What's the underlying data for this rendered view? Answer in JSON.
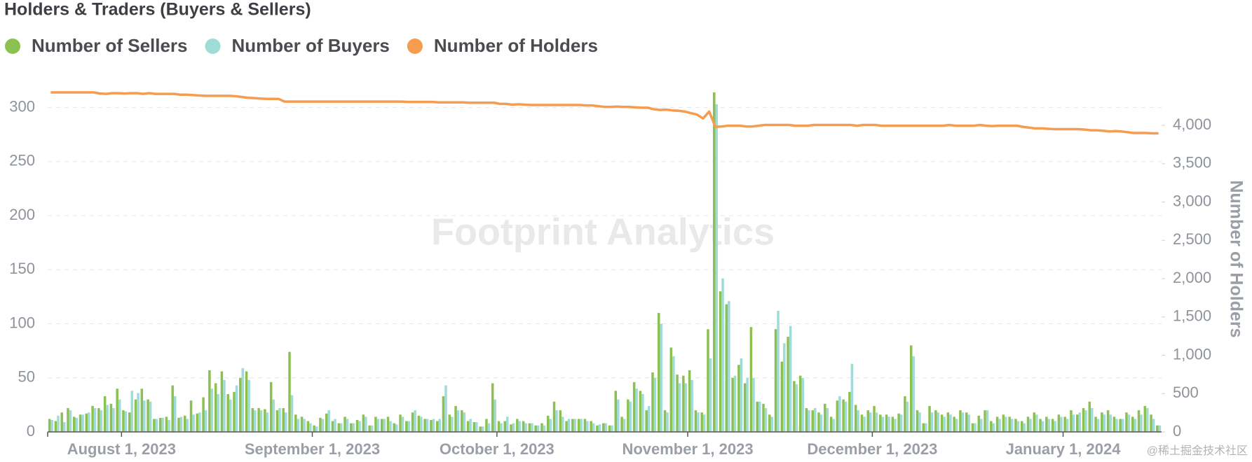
{
  "chart_data": {
    "type": "bar-line",
    "title": "Holders & Traders (Buyers & Sellers)",
    "y2_label": "Number of Holders",
    "watermark": "Footprint Analytics",
    "credit": "@稀土掘金技术社区",
    "legend": "top-left",
    "grid": true,
    "xlim": [
      "2023-07-20",
      "2024-01-17"
    ],
    "xticks": [
      {
        "value": "2023-08-01",
        "label": "August 1, 2023"
      },
      {
        "value": "2023-09-01",
        "label": "September 1, 2023"
      },
      {
        "value": "2023-10-01",
        "label": "October 1, 2023"
      },
      {
        "value": "2023-11-01",
        "label": "November 1, 2023"
      },
      {
        "value": "2023-12-01",
        "label": "December 1, 2023"
      },
      {
        "value": "2024-01-01",
        "label": "January 1, 2024"
      }
    ],
    "ylim": [
      0,
      325
    ],
    "yticks": [
      0,
      50,
      100,
      150,
      200,
      250,
      300
    ],
    "y2lim": [
      0,
      4585
    ],
    "y2ticks": [
      0,
      500,
      {
        "value": 1000,
        "label": "1,000"
      },
      {
        "value": 1500,
        "label": "1,500"
      },
      {
        "value": 2000,
        "label": "2,000"
      },
      {
        "value": 2500,
        "label": "2,500"
      },
      {
        "value": 3000,
        "label": "3,000"
      },
      {
        "value": 3500,
        "label": "3,500"
      },
      {
        "value": 4000,
        "label": "4,000"
      }
    ],
    "x": [
      "2023-07-20",
      "2023-07-21",
      "2023-07-22",
      "2023-07-23",
      "2023-07-24",
      "2023-07-25",
      "2023-07-26",
      "2023-07-27",
      "2023-07-28",
      "2023-07-29",
      "2023-07-30",
      "2023-07-31",
      "2023-08-01",
      "2023-08-02",
      "2023-08-03",
      "2023-08-04",
      "2023-08-05",
      "2023-08-06",
      "2023-08-07",
      "2023-08-08",
      "2023-08-09",
      "2023-08-10",
      "2023-08-11",
      "2023-08-12",
      "2023-08-13",
      "2023-08-14",
      "2023-08-15",
      "2023-08-16",
      "2023-08-17",
      "2023-08-18",
      "2023-08-19",
      "2023-08-20",
      "2023-08-21",
      "2023-08-22",
      "2023-08-23",
      "2023-08-24",
      "2023-08-25",
      "2023-08-26",
      "2023-08-27",
      "2023-08-28",
      "2023-08-29",
      "2023-08-30",
      "2023-08-31",
      "2023-09-01",
      "2023-09-02",
      "2023-09-03",
      "2023-09-04",
      "2023-09-05",
      "2023-09-06",
      "2023-09-07",
      "2023-09-08",
      "2023-09-09",
      "2023-09-10",
      "2023-09-11",
      "2023-09-12",
      "2023-09-13",
      "2023-09-14",
      "2023-09-15",
      "2023-09-16",
      "2023-09-17",
      "2023-09-18",
      "2023-09-19",
      "2023-09-20",
      "2023-09-21",
      "2023-09-22",
      "2023-09-23",
      "2023-09-24",
      "2023-09-25",
      "2023-09-26",
      "2023-09-27",
      "2023-09-28",
      "2023-09-29",
      "2023-09-30",
      "2023-10-01",
      "2023-10-02",
      "2023-10-03",
      "2023-10-04",
      "2023-10-05",
      "2023-10-06",
      "2023-10-07",
      "2023-10-08",
      "2023-10-09",
      "2023-10-10",
      "2023-10-11",
      "2023-10-12",
      "2023-10-13",
      "2023-10-14",
      "2023-10-15",
      "2023-10-16",
      "2023-10-17",
      "2023-10-18",
      "2023-10-19",
      "2023-10-20",
      "2023-10-21",
      "2023-10-22",
      "2023-10-23",
      "2023-10-24",
      "2023-10-25",
      "2023-10-26",
      "2023-10-27",
      "2023-10-28",
      "2023-10-29",
      "2023-10-30",
      "2023-10-31",
      "2023-11-01",
      "2023-11-02",
      "2023-11-03",
      "2023-11-04",
      "2023-11-05",
      "2023-11-06",
      "2023-11-07",
      "2023-11-08",
      "2023-11-09",
      "2023-11-10",
      "2023-11-11",
      "2023-11-12",
      "2023-11-13",
      "2023-11-14",
      "2023-11-15",
      "2023-11-16",
      "2023-11-17",
      "2023-11-18",
      "2023-11-19",
      "2023-11-20",
      "2023-11-21",
      "2023-11-22",
      "2023-11-23",
      "2023-11-24",
      "2023-11-25",
      "2023-11-26",
      "2023-11-27",
      "2023-11-28",
      "2023-11-29",
      "2023-11-30",
      "2023-12-01",
      "2023-12-02",
      "2023-12-03",
      "2023-12-04",
      "2023-12-05",
      "2023-12-06",
      "2023-12-07",
      "2023-12-08",
      "2023-12-09",
      "2023-12-10",
      "2023-12-11",
      "2023-12-12",
      "2023-12-13",
      "2023-12-14",
      "2023-12-15",
      "2023-12-16",
      "2023-12-17",
      "2023-12-18",
      "2023-12-19",
      "2023-12-20",
      "2023-12-21",
      "2023-12-22",
      "2023-12-23",
      "2023-12-24",
      "2023-12-25",
      "2023-12-26",
      "2023-12-27",
      "2023-12-28",
      "2023-12-29",
      "2023-12-30",
      "2023-12-31",
      "2024-01-01",
      "2024-01-02",
      "2024-01-03",
      "2024-01-04",
      "2024-01-05",
      "2024-01-06",
      "2024-01-07",
      "2024-01-08",
      "2024-01-09",
      "2024-01-10",
      "2024-01-11",
      "2024-01-12",
      "2024-01-13",
      "2024-01-14",
      "2024-01-15",
      "2024-01-16"
    ],
    "series": [
      {
        "name": "Number of Sellers",
        "color": "#8cc152",
        "kind": "bar",
        "axis": "y",
        "values": [
          12,
          10,
          18,
          22,
          14,
          16,
          17,
          24,
          22,
          33,
          26,
          40,
          20,
          18,
          30,
          40,
          30,
          12,
          13,
          14,
          43,
          13,
          15,
          29,
          17,
          32,
          57,
          45,
          56,
          35,
          37,
          50,
          56,
          22,
          22,
          21,
          46,
          20,
          22,
          74,
          16,
          14,
          10,
          6,
          13,
          17,
          10,
          8,
          14,
          8,
          11,
          16,
          6,
          14,
          12,
          14,
          8,
          16,
          10,
          18,
          15,
          12,
          11,
          10,
          33,
          16,
          24,
          20,
          10,
          9,
          5,
          12,
          45,
          10,
          10,
          7,
          12,
          10,
          8,
          6,
          8,
          15,
          28,
          20,
          10,
          12,
          12,
          12,
          10,
          6,
          8,
          6,
          38,
          14,
          30,
          46,
          38,
          20,
          55,
          110,
          20,
          78,
          53,
          52,
          57,
          20,
          18,
          95,
          314,
          130,
          118,
          50,
          62,
          45,
          97,
          28,
          26,
          16,
          95,
          65,
          88,
          47,
          52,
          22,
          20,
          18,
          26,
          14,
          29,
          30,
          37,
          25,
          16,
          20,
          24,
          16,
          16,
          14,
          17,
          33,
          80,
          20,
          8,
          24,
          20,
          16,
          18,
          14,
          20,
          18,
          8,
          15,
          20,
          10,
          14,
          16,
          14,
          12,
          10,
          14,
          18,
          12,
          14,
          12,
          16,
          14,
          20,
          16,
          22,
          28,
          14,
          18,
          20,
          14,
          12,
          18,
          14,
          20,
          24,
          16,
          6
        ]
      },
      {
        "name": "Number of Buyers",
        "color": "#9fdcd8",
        "kind": "bar",
        "axis": "y",
        "values": [
          11,
          15,
          9,
          20,
          13,
          16,
          18,
          22,
          20,
          25,
          22,
          30,
          19,
          38,
          36,
          29,
          28,
          12,
          13,
          11,
          33,
          14,
          12,
          16,
          18,
          20,
          40,
          35,
          48,
          30,
          43,
          59,
          48,
          20,
          20,
          18,
          30,
          22,
          18,
          34,
          12,
          12,
          8,
          5,
          12,
          20,
          12,
          8,
          12,
          8,
          10,
          14,
          6,
          12,
          12,
          10,
          7,
          14,
          10,
          20,
          14,
          12,
          12,
          12,
          43,
          14,
          20,
          18,
          12,
          9,
          5,
          8,
          30,
          8,
          14,
          8,
          10,
          8,
          8,
          6,
          6,
          12,
          20,
          14,
          12,
          12,
          12,
          10,
          8,
          7,
          8,
          6,
          30,
          12,
          28,
          40,
          35,
          24,
          50,
          100,
          18,
          70,
          45,
          45,
          48,
          18,
          16,
          68,
          303,
          142,
          121,
          52,
          68,
          50,
          50,
          28,
          22,
          14,
          112,
          82,
          98,
          44,
          50,
          20,
          22,
          16,
          22,
          12,
          33,
          28,
          63,
          20,
          14,
          18,
          18,
          14,
          14,
          12,
          16,
          28,
          70,
          18,
          8,
          18,
          18,
          14,
          16,
          12,
          18,
          16,
          8,
          12,
          20,
          8,
          12,
          14,
          12,
          10,
          8,
          12,
          16,
          10,
          12,
          10,
          14,
          12,
          16,
          18,
          20,
          22,
          12,
          16,
          16,
          12,
          12,
          16,
          12,
          16,
          22,
          12,
          6
        ]
      },
      {
        "name": "Number of Holders",
        "color": "#f59c4f",
        "kind": "line",
        "axis": "y2",
        "values": [
          4430,
          4430,
          4430,
          4430,
          4430,
          4430,
          4430,
          4430,
          4415,
          4410,
          4420,
          4420,
          4415,
          4420,
          4420,
          4410,
          4420,
          4410,
          4410,
          4410,
          4410,
          4400,
          4400,
          4395,
          4390,
          4385,
          4385,
          4385,
          4385,
          4385,
          4380,
          4370,
          4360,
          4355,
          4350,
          4345,
          4345,
          4345,
          4310,
          4310,
          4310,
          4310,
          4310,
          4310,
          4310,
          4310,
          4310,
          4310,
          4310,
          4310,
          4310,
          4310,
          4310,
          4310,
          4310,
          4310,
          4310,
          4310,
          4305,
          4305,
          4305,
          4305,
          4305,
          4300,
          4300,
          4300,
          4300,
          4300,
          4295,
          4295,
          4295,
          4295,
          4295,
          4280,
          4280,
          4270,
          4275,
          4270,
          4265,
          4265,
          4265,
          4265,
          4265,
          4265,
          4265,
          4265,
          4265,
          4260,
          4260,
          4250,
          4240,
          4240,
          4245,
          4240,
          4240,
          4235,
          4230,
          4230,
          4210,
          4200,
          4205,
          4195,
          4190,
          4180,
          4160,
          4140,
          4090,
          4180,
          3980,
          3985,
          3995,
          3995,
          3995,
          3985,
          3985,
          3995,
          4005,
          4005,
          4005,
          4005,
          4005,
          3995,
          3995,
          3995,
          4005,
          4005,
          4005,
          4005,
          4005,
          4005,
          4005,
          3995,
          4005,
          4005,
          4005,
          3995,
          3995,
          3995,
          3995,
          3995,
          3995,
          3995,
          3995,
          3995,
          3995,
          3995,
          4005,
          3995,
          3995,
          3995,
          3995,
          4005,
          3995,
          3990,
          3995,
          3995,
          3995,
          3995,
          3980,
          3970,
          3960,
          3960,
          3955,
          3950,
          3950,
          3950,
          3950,
          3950,
          3945,
          3935,
          3935,
          3930,
          3920,
          3925,
          3920,
          3910,
          3900,
          3900,
          3900,
          3895,
          3895
        ]
      }
    ]
  }
}
